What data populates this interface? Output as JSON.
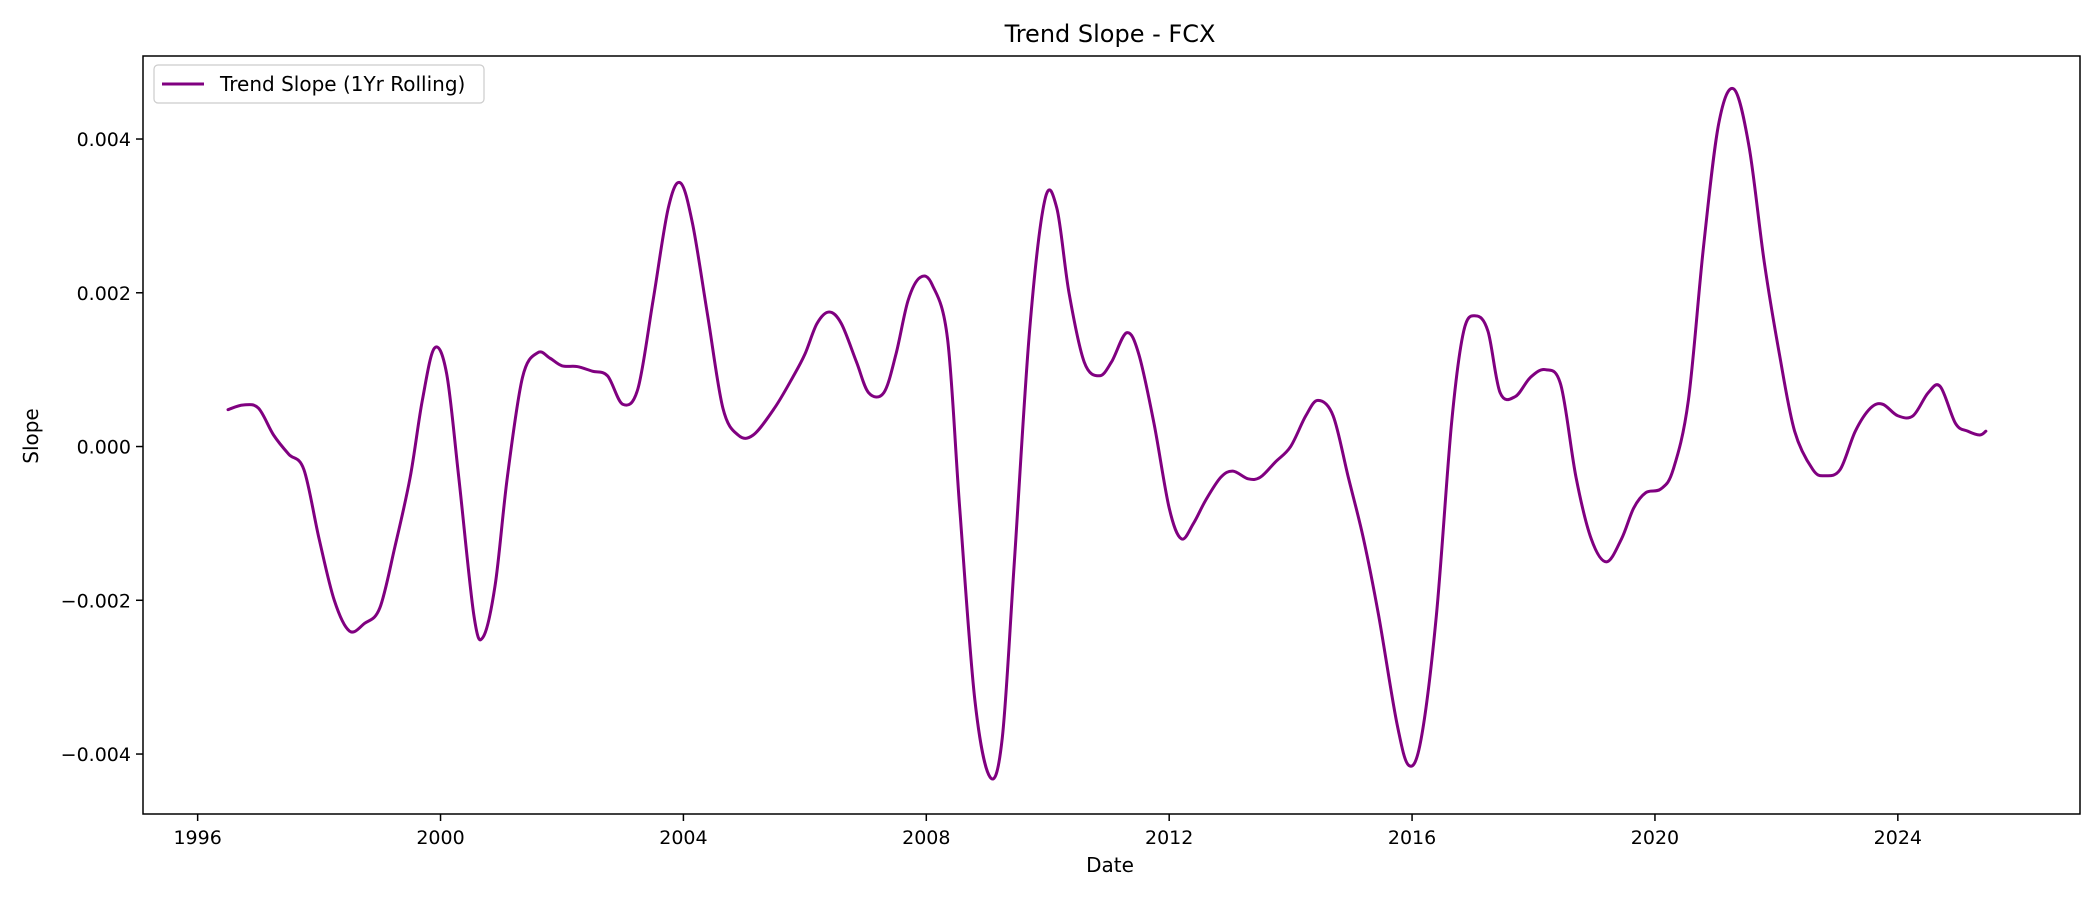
{
  "chart_data": {
    "type": "line",
    "title": "Trend Slope - FCX",
    "xlabel": "Date",
    "ylabel": "Slope",
    "xlim": [
      1995.1,
      2027.0
    ],
    "ylim": [
      -0.00478,
      0.00508
    ],
    "x_ticks": [
      1996,
      2000,
      2004,
      2008,
      2012,
      2016,
      2020,
      2024
    ],
    "x_tick_labels": [
      "1996",
      "2000",
      "2004",
      "2008",
      "2012",
      "2016",
      "2020",
      "2024"
    ],
    "y_ticks": [
      -0.004,
      -0.002,
      0.0,
      0.002,
      0.004
    ],
    "y_tick_labels": [
      "−0.004",
      "−0.002",
      "0.000",
      "0.002",
      "0.004"
    ],
    "grid": false,
    "legend": {
      "position": "top-left",
      "entries": [
        "Trend Slope (1Yr Rolling)"
      ]
    },
    "series": [
      {
        "name": "Trend Slope (1Yr Rolling)",
        "color": "#800080",
        "points": [
          [
            1996.5,
            0.00048
          ],
          [
            1996.75,
            0.00054
          ],
          [
            1997.0,
            0.0005
          ],
          [
            1997.25,
            0.00015
          ],
          [
            1997.5,
            -0.0001
          ],
          [
            1997.75,
            -0.0003
          ],
          [
            1998.0,
            -0.0012
          ],
          [
            1998.25,
            -0.002
          ],
          [
            1998.5,
            -0.0024
          ],
          [
            1998.75,
            -0.0023
          ],
          [
            1999.0,
            -0.0021
          ],
          [
            1999.25,
            -0.0013
          ],
          [
            1999.5,
            -0.0004
          ],
          [
            1999.7,
            0.0006
          ],
          [
            1999.9,
            0.00128
          ],
          [
            2000.1,
            0.00095
          ],
          [
            2000.3,
            -0.0004
          ],
          [
            2000.55,
            -0.0022
          ],
          [
            2000.7,
            -0.00248
          ],
          [
            2000.9,
            -0.0018
          ],
          [
            2001.1,
            -0.0004
          ],
          [
            2001.35,
            0.0009
          ],
          [
            2001.6,
            0.00122
          ],
          [
            2001.8,
            0.00115
          ],
          [
            2002.0,
            0.00105
          ],
          [
            2002.25,
            0.00104
          ],
          [
            2002.5,
            0.00098
          ],
          [
            2002.75,
            0.00092
          ],
          [
            2003.0,
            0.00055
          ],
          [
            2003.25,
            0.00075
          ],
          [
            2003.5,
            0.0019
          ],
          [
            2003.75,
            0.0031
          ],
          [
            2003.95,
            0.00343
          ],
          [
            2004.15,
            0.0029
          ],
          [
            2004.4,
            0.0017
          ],
          [
            2004.65,
            0.0005
          ],
          [
            2004.9,
            0.00015
          ],
          [
            2005.15,
            0.00015
          ],
          [
            2005.5,
            0.0005
          ],
          [
            2005.8,
            0.0009
          ],
          [
            2006.0,
            0.0012
          ],
          [
            2006.2,
            0.0016
          ],
          [
            2006.4,
            0.00175
          ],
          [
            2006.6,
            0.0016
          ],
          [
            2006.85,
            0.0011
          ],
          [
            2007.05,
            0.0007
          ],
          [
            2007.3,
            0.0007
          ],
          [
            2007.5,
            0.0012
          ],
          [
            2007.7,
            0.0019
          ],
          [
            2007.9,
            0.0022
          ],
          [
            2008.1,
            0.0021
          ],
          [
            2008.35,
            0.0014
          ],
          [
            2008.55,
            -0.0008
          ],
          [
            2008.8,
            -0.0033
          ],
          [
            2009.05,
            -0.0043
          ],
          [
            2009.25,
            -0.0038
          ],
          [
            2009.45,
            -0.0015
          ],
          [
            2009.7,
            0.0015
          ],
          [
            2009.95,
            0.0032
          ],
          [
            2010.15,
            0.0031
          ],
          [
            2010.35,
            0.002
          ],
          [
            2010.6,
            0.0011
          ],
          [
            2010.85,
            0.00092
          ],
          [
            2011.05,
            0.0011
          ],
          [
            2011.3,
            0.00148
          ],
          [
            2011.5,
            0.0012
          ],
          [
            2011.75,
            0.0003
          ],
          [
            2012.0,
            -0.0008
          ],
          [
            2012.2,
            -0.0012
          ],
          [
            2012.4,
            -0.001
          ],
          [
            2012.6,
            -0.0007
          ],
          [
            2012.85,
            -0.0004
          ],
          [
            2013.05,
            -0.00032
          ],
          [
            2013.3,
            -0.00042
          ],
          [
            2013.5,
            -0.0004
          ],
          [
            2013.75,
            -0.0002
          ],
          [
            2014.0,
            0.0
          ],
          [
            2014.25,
            0.0004
          ],
          [
            2014.45,
            0.0006
          ],
          [
            2014.7,
            0.0004
          ],
          [
            2014.95,
            -0.0004
          ],
          [
            2015.2,
            -0.0012
          ],
          [
            2015.45,
            -0.0022
          ],
          [
            2015.75,
            -0.0036
          ],
          [
            2015.95,
            -0.00415
          ],
          [
            2016.15,
            -0.0038
          ],
          [
            2016.4,
            -0.0022
          ],
          [
            2016.65,
            0.0003
          ],
          [
            2016.85,
            0.0015
          ],
          [
            2017.05,
            0.0017
          ],
          [
            2017.25,
            0.0015
          ],
          [
            2017.45,
            0.0007
          ],
          [
            2017.7,
            0.00065
          ],
          [
            2017.95,
            0.0009
          ],
          [
            2018.2,
            0.001
          ],
          [
            2018.45,
            0.0008
          ],
          [
            2018.7,
            -0.0004
          ],
          [
            2018.95,
            -0.0012
          ],
          [
            2019.2,
            -0.0015
          ],
          [
            2019.45,
            -0.0012
          ],
          [
            2019.65,
            -0.0008
          ],
          [
            2019.85,
            -0.0006
          ],
          [
            2020.1,
            -0.00055
          ],
          [
            2020.3,
            -0.0003
          ],
          [
            2020.55,
            0.0006
          ],
          [
            2020.8,
            0.0026
          ],
          [
            2021.05,
            0.0042
          ],
          [
            2021.3,
            0.00465
          ],
          [
            2021.55,
            0.0039
          ],
          [
            2021.8,
            0.0024
          ],
          [
            2022.05,
            0.0012
          ],
          [
            2022.3,
            0.0002
          ],
          [
            2022.6,
            -0.0003
          ],
          [
            2022.8,
            -0.00038
          ],
          [
            2023.05,
            -0.0003
          ],
          [
            2023.3,
            0.0002
          ],
          [
            2023.55,
            0.0005
          ],
          [
            2023.75,
            0.00055
          ],
          [
            2024.0,
            0.0004
          ],
          [
            2024.25,
            0.0004
          ],
          [
            2024.5,
            0.0007
          ],
          [
            2024.7,
            0.00078
          ],
          [
            2024.95,
            0.0003
          ],
          [
            2025.15,
            0.0002
          ],
          [
            2025.35,
            0.00015
          ],
          [
            2025.45,
            0.0002
          ]
        ]
      }
    ]
  }
}
